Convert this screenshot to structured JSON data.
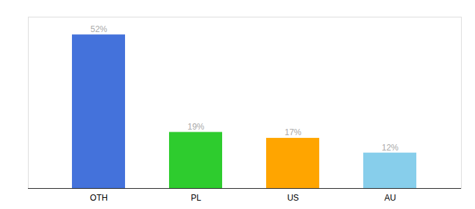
{
  "chart_data": {
    "type": "bar",
    "categories": [
      "OTH",
      "PL",
      "US",
      "AU"
    ],
    "values": [
      52,
      19,
      17,
      12
    ],
    "value_labels": [
      "52%",
      "19%",
      "17%",
      "12%"
    ],
    "colors": [
      "#4472DB",
      "#2ECC2E",
      "#FFA500",
      "#87CEEB"
    ],
    "ylim": [
      0,
      58
    ],
    "data_labels": true,
    "tick_labels": "x"
  }
}
